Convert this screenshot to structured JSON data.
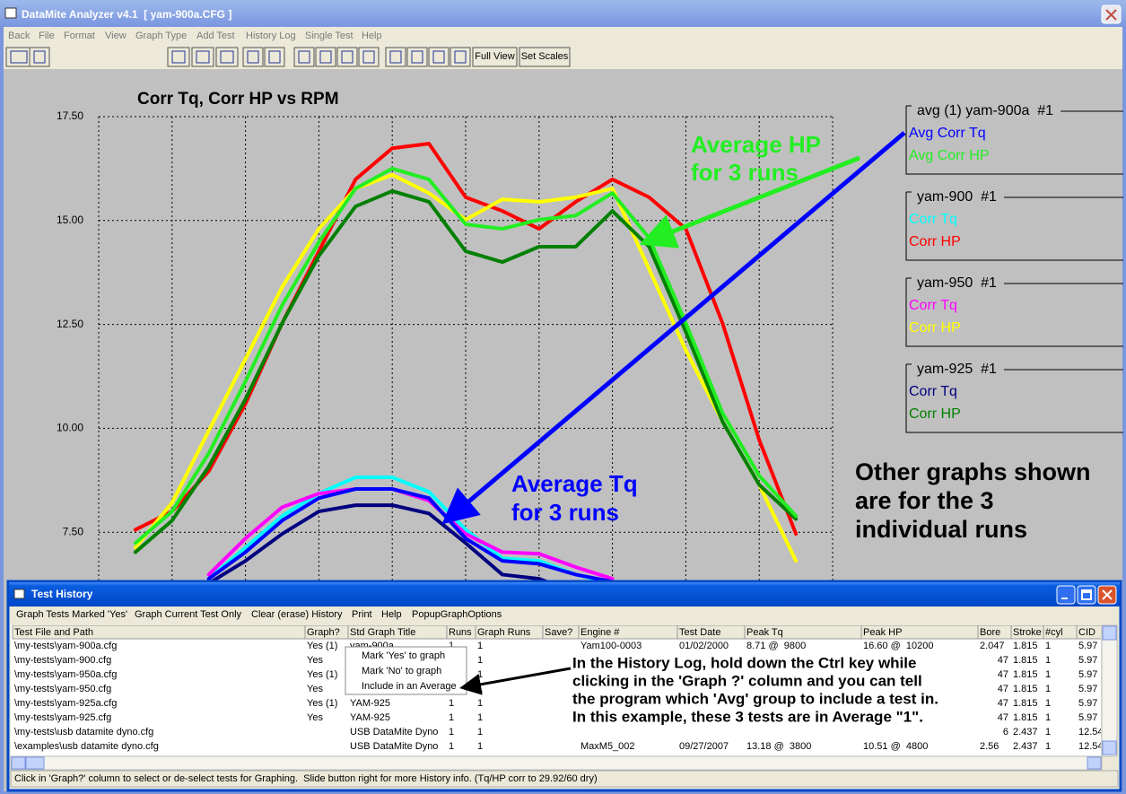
{
  "window": {
    "title": "DataMite Analyzer v4.1  [ yam-900a.CFG ]",
    "menu": [
      "Back",
      "File",
      "Format",
      "View",
      "Graph Type",
      "Add Test",
      "History Log",
      "Single Test",
      "Help"
    ],
    "toolbar": [
      "Full View",
      "Set Scales"
    ]
  },
  "chart_data": {
    "type": "line",
    "title": "Corr Tq, Corr HP vs RPM",
    "categories": [
      null,
      null,
      null,
      null,
      null,
      null,
      null,
      null,
      null,
      null,
      null,
      null,
      null,
      null,
      null,
      null,
      null,
      null,
      null,
      null,
      null
    ],
    "ylim": [
      5,
      17.5
    ],
    "yticks": [
      {
        "value": 17.5,
        "label": "17.50"
      },
      {
        "value": 15,
        "label": "15.00"
      },
      {
        "value": 12.5,
        "label": "12.50"
      },
      {
        "value": 10,
        "label": "10.00"
      },
      {
        "value": 7.5,
        "label": "7.50"
      }
    ],
    "grid": true,
    "series": [
      {
        "name": "Avg Corr Tq",
        "color": "#0000ff",
        "values": [
          null,
          null,
          null,
          6.38,
          7.02,
          7.78,
          8.32,
          8.54,
          8.54,
          8.32,
          7.35,
          6.81,
          6.74,
          6.48,
          6.31,
          null,
          null,
          null,
          null,
          null,
          null
        ]
      },
      {
        "name": "Avg Corr HP",
        "color": "#22ee22",
        "values": [
          null,
          7.24,
          8.0,
          9.4,
          11.13,
          12.96,
          14.48,
          15.77,
          16.25,
          15.99,
          14.91,
          14.8,
          15.02,
          15.12,
          15.66,
          14.58,
          12.53,
          10.37,
          8.86,
          7.89,
          null
        ]
      },
      {
        "name": "Corr Tq",
        "color": "#00ffff",
        "values": [
          null,
          null,
          null,
          6.38,
          7.13,
          7.89,
          8.43,
          8.82,
          8.82,
          8.47,
          7.56,
          6.87,
          6.81,
          6.48,
          6.27,
          null,
          null,
          null,
          null,
          null,
          null
        ]
      },
      {
        "name": "Corr HP",
        "color": "#ff0000",
        "values": [
          null,
          7.56,
          8.0,
          8.97,
          10.59,
          12.53,
          14.26,
          15.99,
          16.74,
          16.85,
          15.56,
          15.23,
          14.8,
          15.45,
          15.99,
          15.56,
          14.8,
          12.53,
          9.72,
          7.46,
          null
        ]
      },
      {
        "name": "Corr Tq",
        "color": "#ff00ff",
        "values": [
          null,
          null,
          null,
          6.48,
          7.35,
          8.1,
          8.43,
          8.54,
          8.54,
          8.26,
          7.46,
          7.02,
          6.98,
          6.66,
          6.38,
          null,
          null,
          null,
          null,
          null,
          null
        ]
      },
      {
        "name": "Corr HP",
        "color": "#ffff00",
        "values": [
          null,
          7.13,
          8.21,
          9.94,
          11.67,
          13.4,
          14.8,
          15.77,
          16.1,
          15.66,
          15.02,
          15.51,
          15.45,
          15.56,
          15.77,
          13.83,
          11.88,
          10.16,
          8.64,
          6.81,
          null
        ]
      },
      {
        "name": "Corr Tq",
        "color": "#000080",
        "values": [
          null,
          null,
          null,
          6.27,
          6.81,
          7.46,
          8.0,
          8.15,
          8.15,
          7.95,
          7.24,
          6.48,
          6.38,
          6.05,
          5.84,
          null,
          null,
          null,
          null,
          null,
          null
        ]
      },
      {
        "name": "Corr HP",
        "color": "#008000",
        "values": [
          null,
          7.02,
          7.78,
          9.08,
          10.7,
          12.53,
          14.15,
          15.34,
          15.71,
          15.45,
          14.26,
          14.0,
          14.37,
          14.37,
          15.23,
          14.37,
          12.32,
          10.16,
          8.64,
          7.82,
          null
        ]
      }
    ],
    "legend": [
      {
        "title": "avg (1) yam-900a  #1"
      },
      {
        "title": "yam-900  #1"
      },
      {
        "title": "yam-950  #1"
      },
      {
        "title": "yam-925  #1"
      }
    ],
    "annotations": [
      {
        "lines": [
          "Average HP",
          "for 3 runs"
        ],
        "color": "#22ee22"
      },
      {
        "lines": [
          "Average Tq",
          "for 3 runs"
        ],
        "color": "#0000ff"
      },
      {
        "lines": [
          "Other graphs shown",
          "are for the 3",
          "individual runs"
        ],
        "color": "#000000"
      }
    ]
  },
  "history": {
    "title": "Test History",
    "menu": [
      "Graph Tests Marked 'Yes'",
      "Graph Current Test Only",
      "Clear (erase) History",
      "Print",
      "Help",
      "PopupGraphOptions"
    ],
    "columns": [
      "Test File and Path",
      "Graph?",
      "Std Graph Title",
      "Runs",
      "Graph Runs",
      "Save?",
      "Engine #",
      "Test Date",
      "Peak Tq",
      "Peak HP",
      "Bore",
      "Stroke",
      "#cyl",
      "CID"
    ],
    "rows": [
      [
        "\\my-tests\\yam-900a.cfg",
        "Yes (1)",
        "yam-900a",
        "1",
        "1",
        null,
        "Yam100-0003",
        "01/02/2000",
        "8.71 @  9800",
        "16.60 @  10200",
        "2.047",
        "1.815",
        "1",
        "5.97"
      ],
      [
        "\\my-tests\\yam-900.cfg",
        "Yes",
        null,
        null,
        "1",
        null,
        null,
        null,
        null,
        null,
        "47",
        "1.815",
        "1",
        "5.97"
      ],
      [
        "\\my-tests\\yam-950a.cfg",
        "Yes (1)",
        null,
        null,
        "1",
        null,
        null,
        null,
        null,
        null,
        "47",
        "1.815",
        "1",
        "5.97"
      ],
      [
        "\\my-tests\\yam-950.cfg",
        "Yes",
        null,
        null,
        "1",
        null,
        null,
        null,
        null,
        null,
        "47",
        "1.815",
        "1",
        "5.97"
      ],
      [
        "\\my-tests\\yam-925a.cfg",
        "Yes (1)",
        "YAM-925",
        "1",
        "1",
        null,
        null,
        null,
        null,
        null,
        "47",
        "1.815",
        "1",
        "5.97"
      ],
      [
        "\\my-tests\\yam-925.cfg",
        "Yes",
        "YAM-925",
        "1",
        "1",
        null,
        null,
        null,
        null,
        null,
        "47",
        "1.815",
        "1",
        "5.97"
      ],
      [
        "\\my-tests\\usb datamite dyno.cfg",
        null,
        "USB DataMite Dyno",
        "1",
        "1",
        null,
        null,
        null,
        null,
        null,
        "6",
        "2.437",
        "1",
        "12.54"
      ],
      [
        "\\examples\\usb datamite dyno.cfg",
        null,
        "USB DataMite Dyno",
        "1",
        "1",
        null,
        "MaxM5_002",
        "09/27/2007",
        "13.18 @  3800",
        "10.51 @  4800",
        "2.56",
        "2.437",
        "1",
        "12.54"
      ]
    ],
    "popup": [
      "Mark 'Yes' to graph",
      "Mark 'No' to graph",
      "Include in an Average"
    ],
    "note": [
      "In the History Log, hold down the Ctrl key while",
      "clicking in the 'Graph ?' column and you can tell",
      "the program which 'Avg' group to include a test in.",
      "In this example, these 3 tests are in Average \"1\"."
    ],
    "status": "Click in 'Graph?' column to select or de-select tests for Graphing.  Slide button right for more History info. (Tq/HP corr to 29.92/60 dry)"
  }
}
